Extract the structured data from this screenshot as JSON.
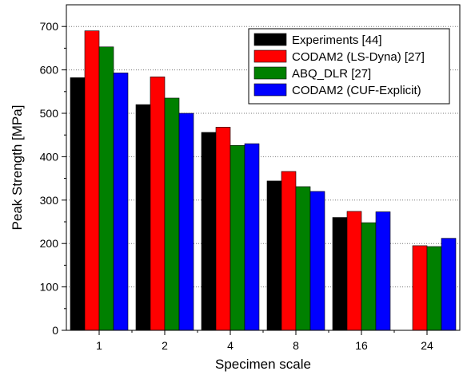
{
  "chart_data": {
    "type": "bar",
    "xlabel": "Specimen scale",
    "ylabel": "Peak Strength [MPa]",
    "ylim": [
      0,
      750
    ],
    "yticks": [
      0,
      100,
      200,
      300,
      400,
      500,
      600,
      700
    ],
    "categories": [
      "1",
      "2",
      "4",
      "8",
      "16",
      "24"
    ],
    "grid": "horizontal dotted",
    "legend_position": "top-right",
    "series": [
      {
        "name": "Experiments [44]",
        "color": "#000000",
        "values": [
          582,
          520,
          456,
          344,
          260,
          null
        ]
      },
      {
        "name": "CODAM2 (LS-Dyna) [27]",
        "color": "#ff0000",
        "values": [
          690,
          584,
          468,
          366,
          274,
          195
        ]
      },
      {
        "name": "ABQ_DLR [27]",
        "color": "#008000",
        "values": [
          653,
          535,
          426,
          331,
          248,
          193
        ]
      },
      {
        "name": "CODAM2 (CUF-Explicit)",
        "color": "#0000ff",
        "values": [
          593,
          500,
          430,
          320,
          273,
          212
        ]
      }
    ]
  }
}
